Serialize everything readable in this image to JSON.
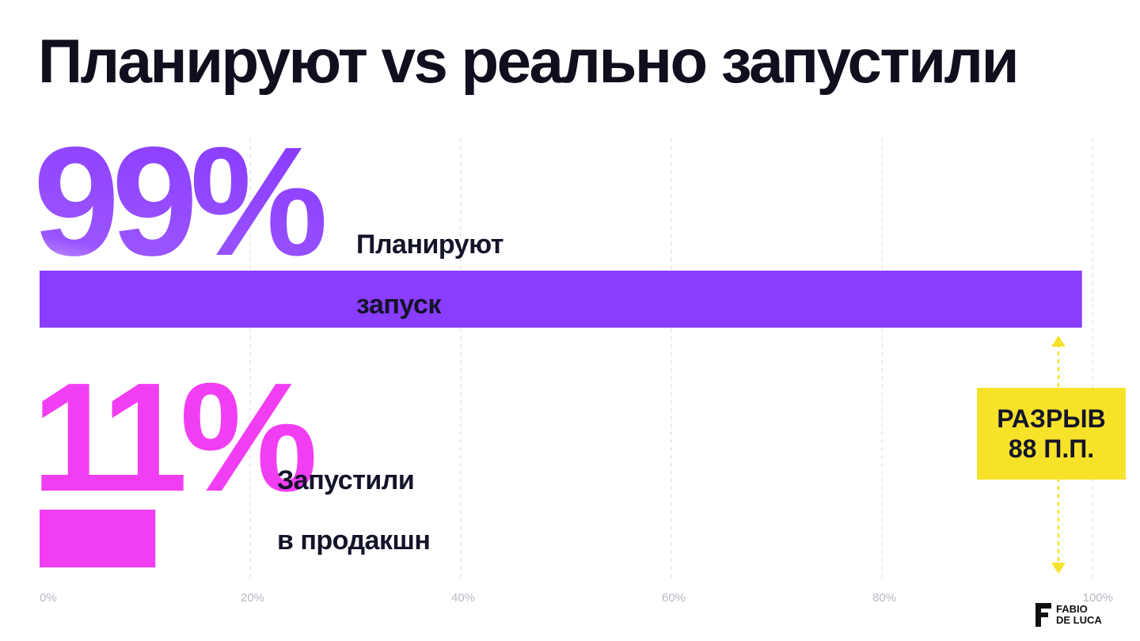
{
  "title": "Планируют vs реально запустили",
  "chart_data": {
    "type": "bar",
    "orientation": "horizontal",
    "categories": [
      "Планируют запуск",
      "Запустили в продакшн"
    ],
    "values": [
      99,
      11
    ],
    "value_labels": [
      "99%",
      "11%"
    ],
    "bar_label_lines": [
      [
        "Планируют",
        "запуск"
      ],
      [
        "Запустили",
        "в продакшн"
      ]
    ],
    "xlim": [
      0,
      100
    ],
    "x_ticks": [
      "0%",
      "20%",
      "40%",
      "60%",
      "80%",
      "100%"
    ],
    "x_tick_values": [
      0,
      20,
      40,
      60,
      80,
      100
    ],
    "grid": "vertical dashed",
    "colors": [
      "#8a3cff",
      "#f23ef2"
    ],
    "annotation": {
      "lines": [
        "РАЗРЫВ",
        "88 П.П."
      ],
      "color": "#f7e22a"
    }
  },
  "logo": {
    "line1": "FABIO",
    "line2": "DE LUCA"
  }
}
